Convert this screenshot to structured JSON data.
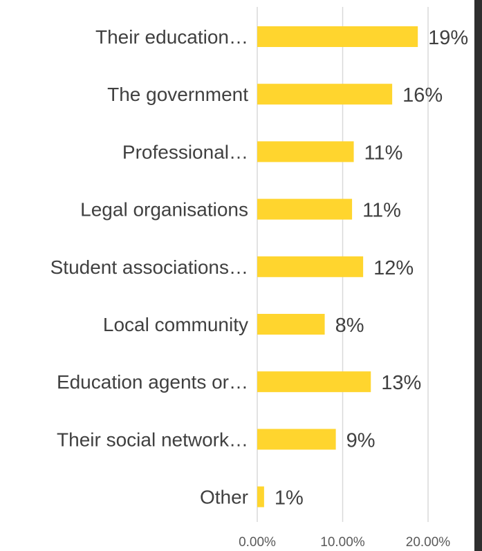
{
  "chart_data": {
    "type": "bar",
    "orientation": "horizontal",
    "categories": [
      "Their education…",
      "The government",
      "Professional…",
      "Legal organisations",
      "Student associations…",
      "Local community",
      "Education agents or…",
      "Their social network…",
      "Other"
    ],
    "values": [
      18.8,
      15.8,
      11.3,
      11.1,
      12.4,
      7.9,
      13.3,
      9.2,
      0.8
    ],
    "data_labels": [
      "19%",
      "16%",
      "11%",
      "11%",
      "12%",
      "8%",
      "13%",
      "9%",
      "1%"
    ],
    "x_ticks": [
      0,
      10,
      20
    ],
    "x_tick_labels": [
      "0.00%",
      "10.00%",
      "20.00%"
    ],
    "xlim": [
      0,
      20
    ],
    "grid": true,
    "legend": "none",
    "title": "",
    "xlabel": "",
    "ylabel": "",
    "colors": {
      "bar": "#FFD52E",
      "grid": "#D9D9D9",
      "text": "#404040",
      "tick_text": "#595959",
      "edge_strip": "#2f2f2f"
    }
  }
}
